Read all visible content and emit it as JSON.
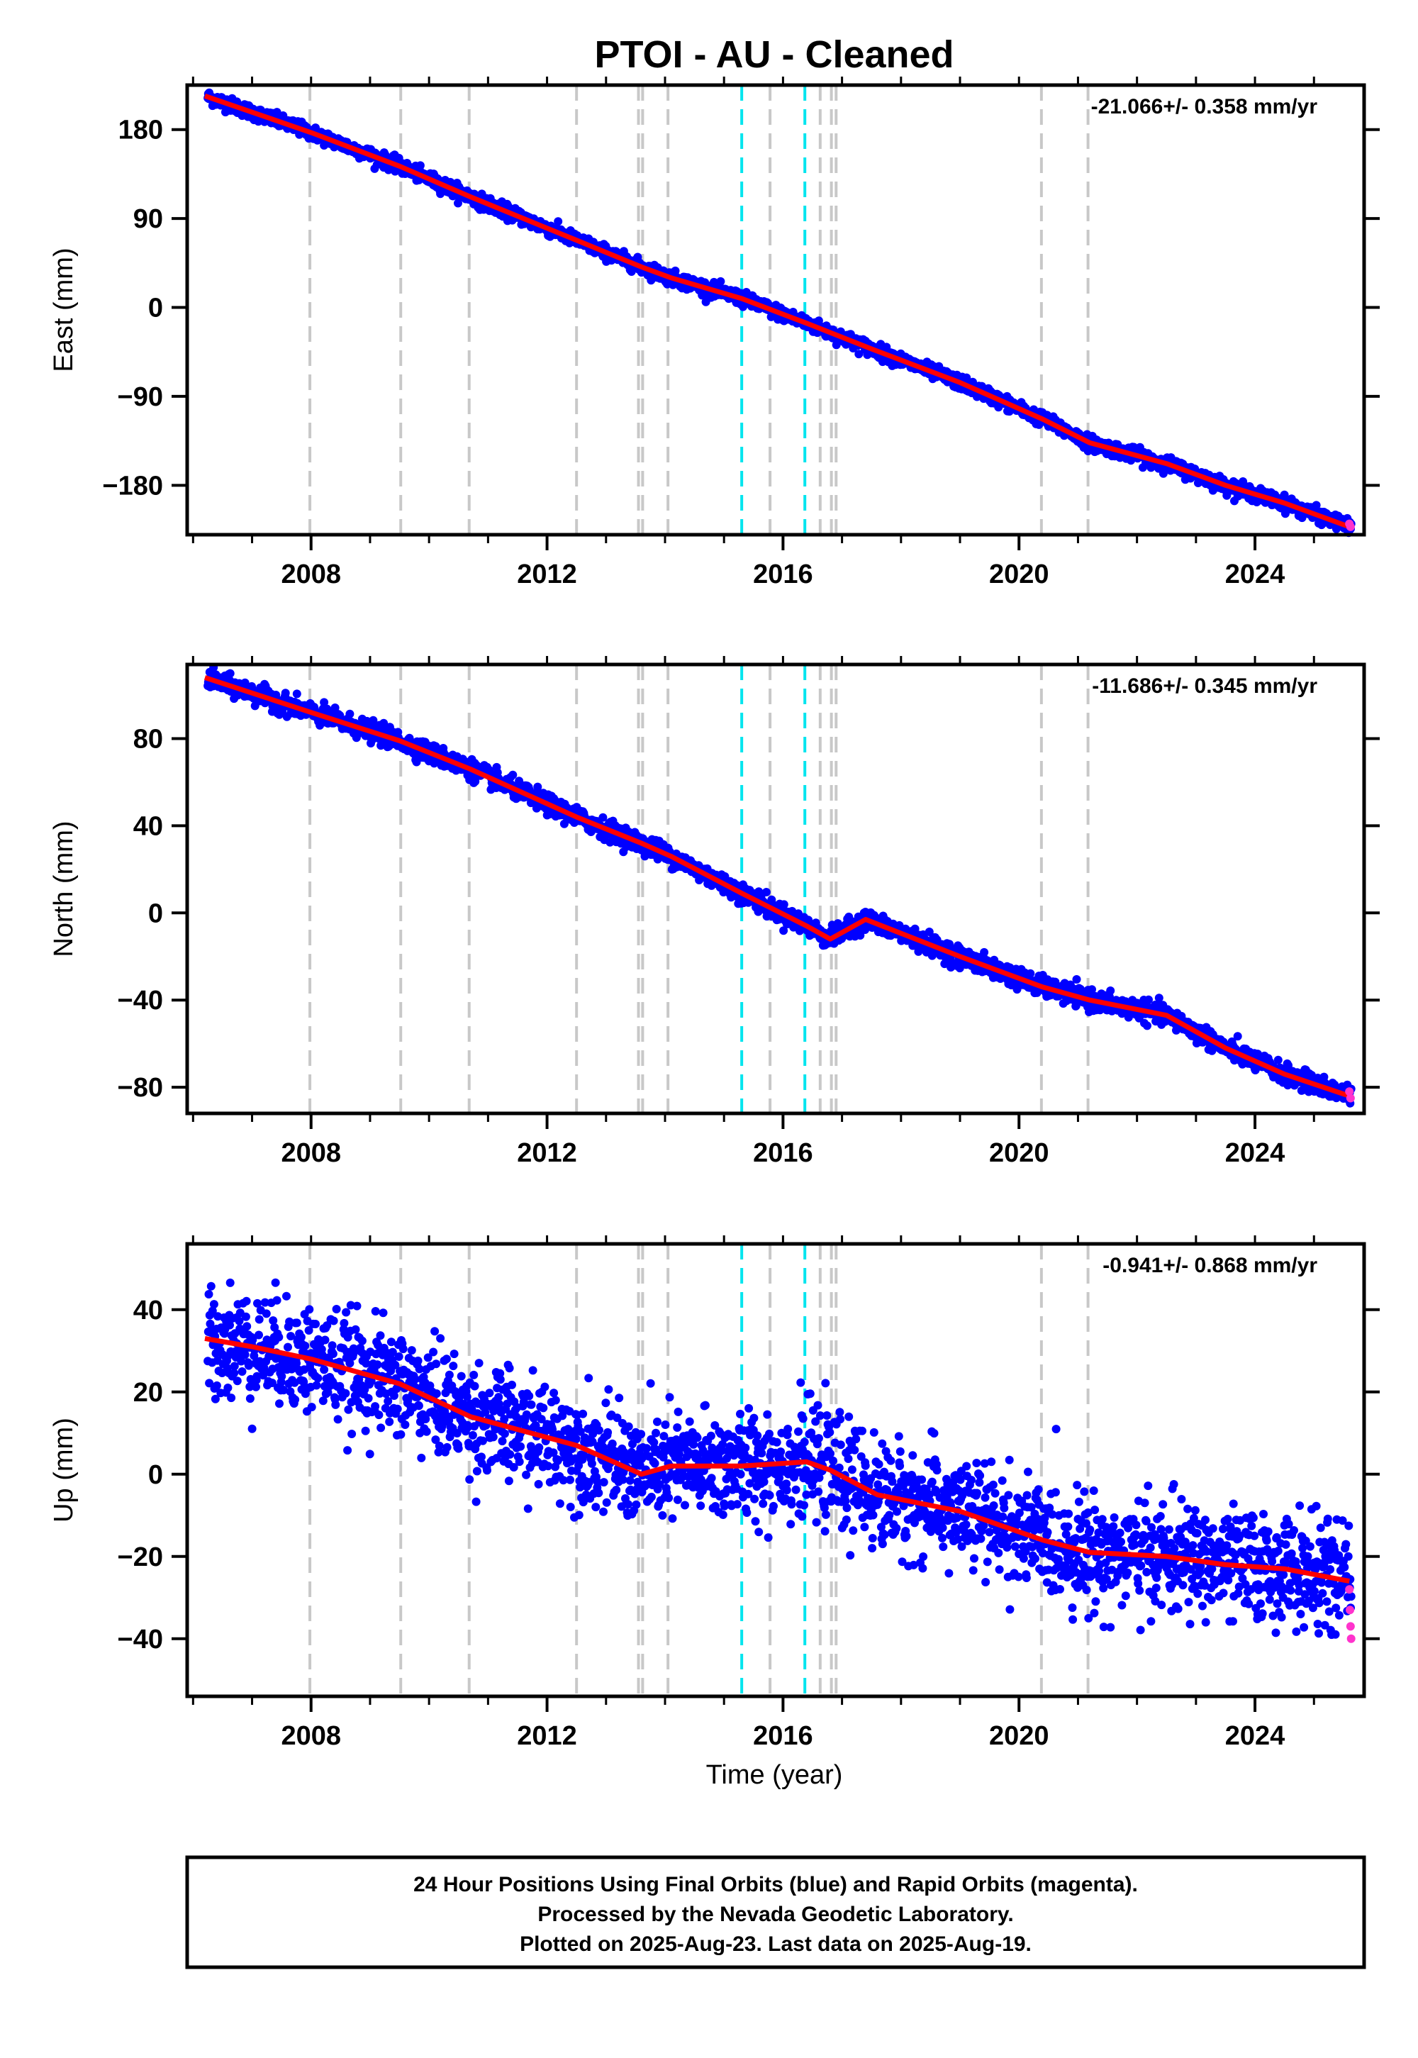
{
  "title": "PTOI  - AU - Cleaned",
  "x_axis_title": "Time (year)",
  "footer": {
    "line1": "24 Hour Positions Using Final Orbits (blue) and Rapid Orbits (magenta).",
    "line2": "Processed by the Nevada Geodetic Laboratory.",
    "line3": "Plotted on 2025-Aug-23. Last data on 2025-Aug-19."
  },
  "colors": {
    "final_orbits": "#0000ff",
    "rapid_orbits": "#ff33cc",
    "model_fit": "#ff0000",
    "event_gray": "#c8c8c8",
    "event_cyan": "#00e5ee"
  },
  "chart_data": [
    {
      "type": "scatter",
      "panel": "east",
      "ylabel": "East (mm)",
      "rate_label": "-21.066+/- 0.358 mm/yr",
      "xlim": [
        2005.9,
        2025.85
      ],
      "ylim": [
        -230,
        225
      ],
      "xticks": [
        2008,
        2012,
        2016,
        2020,
        2024
      ],
      "yticks": [
        -180,
        -90,
        0,
        90,
        180
      ],
      "grid": false,
      "rate_mm_per_yr": -21.066,
      "data_range": [
        2006.25,
        2025.63
      ],
      "fit_line": {
        "x": [
          2006.2,
          2008.0,
          2009.5,
          2010.7,
          2012.5,
          2013.6,
          2014.1,
          2015.3,
          2016.4,
          2017.5,
          2019.0,
          2020.4,
          2021.2,
          2022.5,
          2023.5,
          2024.5,
          2025.6
        ],
        "y": [
          214,
          177,
          143,
          112,
          68,
          41,
          30,
          9,
          -16,
          -42,
          -76,
          -113,
          -137,
          -158,
          -180,
          -198,
          -222
        ]
      },
      "rapid_points": {
        "x": [
          2025.6,
          2025.62
        ],
        "y": [
          -219,
          -222
        ]
      }
    },
    {
      "type": "scatter",
      "panel": "north",
      "ylabel": "North (mm)",
      "rate_label": "-11.686+/- 0.345 mm/yr",
      "xlim": [
        2005.9,
        2025.85
      ],
      "ylim": [
        -92,
        114
      ],
      "xticks": [
        2008,
        2012,
        2016,
        2020,
        2024
      ],
      "yticks": [
        -80,
        -40,
        0,
        40,
        80
      ],
      "grid": false,
      "rate_mm_per_yr": -11.686,
      "data_range": [
        2006.25,
        2025.63
      ],
      "fit_line": {
        "x": [
          2006.2,
          2008.0,
          2009.5,
          2010.7,
          2012.5,
          2013.6,
          2014.1,
          2015.3,
          2016.4,
          2016.8,
          2017.4,
          2019.0,
          2020.4,
          2021.2,
          2022.5,
          2023.5,
          2024.5,
          2025.6
        ],
        "y": [
          108,
          92,
          79,
          66,
          44,
          32,
          26,
          9,
          -6,
          -12,
          -3,
          -20,
          -34,
          -40,
          -47,
          -62,
          -74,
          -84
        ]
      },
      "rapid_points": {
        "x": [
          2025.6,
          2025.62
        ],
        "y": [
          -82,
          -85
        ]
      }
    },
    {
      "type": "scatter",
      "panel": "up",
      "ylabel": "Up (mm)",
      "rate_label": "-0.941+/- 0.868 mm/yr",
      "xlim": [
        2005.9,
        2025.85
      ],
      "ylim": [
        -54,
        56
      ],
      "xticks": [
        2008,
        2012,
        2016,
        2020,
        2024
      ],
      "yticks": [
        -40,
        -20,
        0,
        20,
        40
      ],
      "grid": false,
      "rate_mm_per_yr": -0.941,
      "data_range": [
        2006.25,
        2025.63
      ],
      "fit_line": {
        "x": [
          2006.2,
          2007.0,
          2008.0,
          2009.5,
          2010.7,
          2012.5,
          2013.6,
          2014.1,
          2015.3,
          2016.4,
          2016.8,
          2017.6,
          2019.0,
          2020.4,
          2021.2,
          2022.5,
          2023.5,
          2024.5,
          2025.6
        ],
        "y": [
          33,
          31,
          28,
          22,
          14,
          7,
          0,
          2,
          2,
          3,
          1,
          -5,
          -9,
          -16,
          -19,
          -20,
          -22,
          -23,
          -26
        ]
      },
      "rapid_points": {
        "x": [
          2025.6,
          2025.61,
          2025.62,
          2025.63
        ],
        "y": [
          -28,
          -33,
          -37,
          -40
        ]
      }
    }
  ],
  "events": {
    "gray": [
      2007.98,
      2009.52,
      2010.68,
      2012.5,
      2013.55,
      2013.62,
      2014.05,
      2015.78,
      2016.63,
      2016.82,
      2016.9,
      2020.38,
      2021.17
    ],
    "cyan": [
      2015.3,
      2016.37
    ]
  }
}
